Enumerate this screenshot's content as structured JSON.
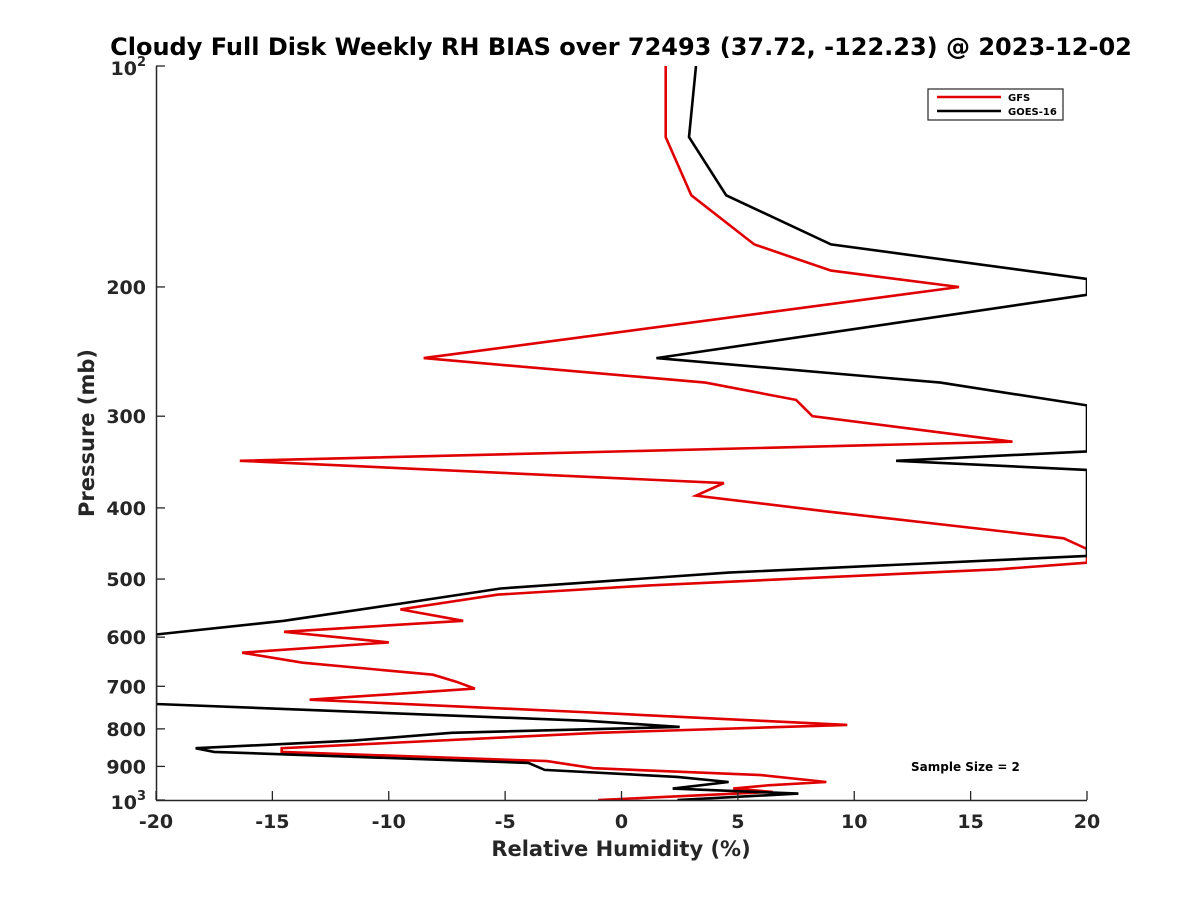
{
  "chart_data": {
    "type": "line",
    "title": "Cloudy Full Disk Weekly RH BIAS over 72493 (37.72, -122.23) @ 2023-12-02",
    "xlabel": "Relative Humidity (%)",
    "ylabel": "Pressure (mb)",
    "xlim": [
      -20,
      20
    ],
    "ylim": [
      100,
      1000
    ],
    "y_scale": "log",
    "y_reversed": true,
    "xticks": [
      "-20",
      "-15",
      "-10",
      "-5",
      "0",
      "5",
      "10",
      "15",
      "20"
    ],
    "yticks": [
      {
        "value": 100,
        "base": "10",
        "exp": "2"
      },
      {
        "value": 200,
        "label": "200"
      },
      {
        "value": 300,
        "label": "300"
      },
      {
        "value": 400,
        "label": "400"
      },
      {
        "value": 500,
        "label": "500"
      },
      {
        "value": 600,
        "label": "600"
      },
      {
        "value": 700,
        "label": "700"
      },
      {
        "value": 800,
        "label": "800"
      },
      {
        "value": 900,
        "label": "900"
      },
      {
        "value": 1000,
        "base": "10",
        "exp": "3"
      }
    ],
    "legend_position": "top-right",
    "grid": false,
    "annotation": "Sample Size = 2",
    "series": [
      {
        "name": "GFS",
        "color": "#e00000",
        "points": [
          [
            1.9,
            100
          ],
          [
            1.9,
            125
          ],
          [
            3.0,
            150
          ],
          [
            5.7,
            175
          ],
          [
            9.0,
            190
          ],
          [
            14.5,
            200
          ],
          [
            -8.5,
            250
          ],
          [
            3.6,
            270
          ],
          [
            7.5,
            285
          ],
          [
            8.2,
            300
          ],
          [
            16.8,
            325
          ],
          [
            -16.4,
            345
          ],
          [
            4.4,
            370
          ],
          [
            3.2,
            385
          ],
          [
            9.0,
            405
          ],
          [
            19.0,
            440
          ],
          [
            20.0,
            455
          ],
          [
            20.0,
            475
          ],
          [
            16.2,
            485
          ],
          [
            1.2,
            510
          ],
          [
            -5.3,
            525
          ],
          [
            -9.5,
            550
          ],
          [
            -6.8,
            570
          ],
          [
            -14.5,
            590
          ],
          [
            -10.0,
            610
          ],
          [
            -16.3,
            630
          ],
          [
            -13.7,
            650
          ],
          [
            -8.1,
            675
          ],
          [
            -7.1,
            690
          ],
          [
            -6.3,
            705
          ],
          [
            -13.4,
            730
          ],
          [
            -1.3,
            760
          ],
          [
            6.0,
            780
          ],
          [
            9.7,
            790
          ],
          [
            -1.0,
            810
          ],
          [
            -14.6,
            850
          ],
          [
            -14.6,
            860
          ],
          [
            -3.2,
            885
          ],
          [
            -1.2,
            905
          ],
          [
            6.0,
            925
          ],
          [
            8.8,
            945
          ],
          [
            6.3,
            955
          ],
          [
            4.8,
            965
          ],
          [
            6.5,
            975
          ],
          [
            -1.0,
            1000
          ]
        ]
      },
      {
        "name": "GOES-16",
        "color": "#000000",
        "points": [
          [
            3.2,
            100
          ],
          [
            2.9,
            125
          ],
          [
            4.5,
            150
          ],
          [
            9.0,
            175
          ],
          [
            20.0,
            195
          ],
          [
            20.0,
            205
          ],
          [
            1.5,
            250
          ],
          [
            13.7,
            270
          ],
          [
            20.0,
            290
          ],
          [
            20.0,
            335
          ],
          [
            11.8,
            345
          ],
          [
            20.0,
            355
          ],
          [
            20.0,
            465
          ],
          [
            4.6,
            490
          ],
          [
            -5.2,
            515
          ],
          [
            -9.5,
            540
          ],
          [
            -14.5,
            570
          ],
          [
            -20.0,
            595
          ],
          [
            -20.0,
            740
          ],
          [
            -1.5,
            780
          ],
          [
            2.5,
            795
          ],
          [
            -7.3,
            810
          ],
          [
            -11.5,
            830
          ],
          [
            -18.3,
            850
          ],
          [
            -17.5,
            860
          ],
          [
            -4.0,
            890
          ],
          [
            -3.3,
            910
          ],
          [
            2.4,
            930
          ],
          [
            4.6,
            945
          ],
          [
            2.2,
            965
          ],
          [
            7.6,
            980
          ],
          [
            2.4,
            1000
          ]
        ]
      }
    ]
  }
}
